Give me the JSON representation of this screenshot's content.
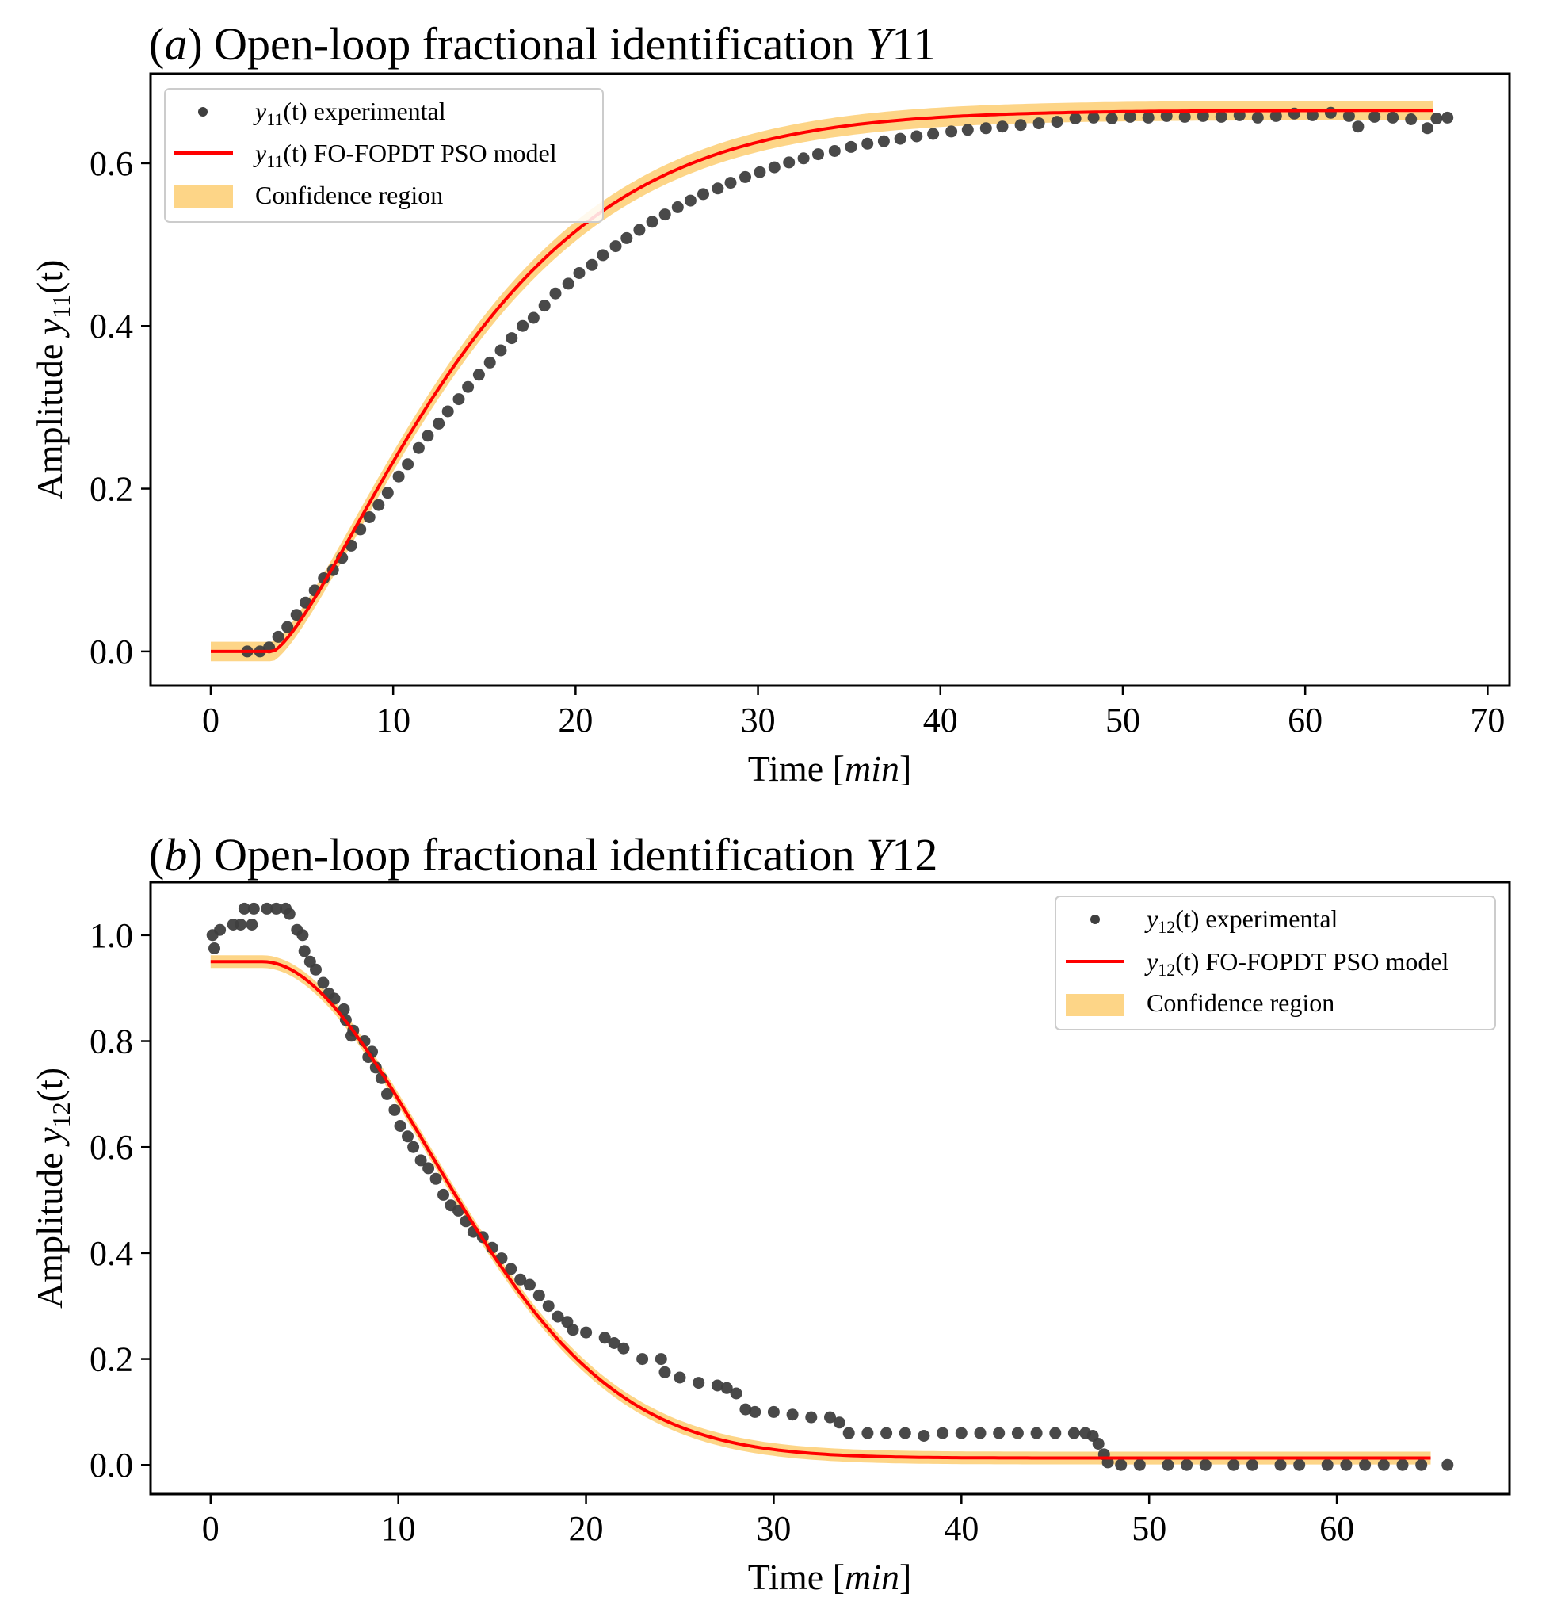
{
  "colors": {
    "band": "#fdd587",
    "model": "#ff0000",
    "exp": "#3f3f3f",
    "axis": "#000000"
  },
  "chart_data": [
    {
      "id": "a",
      "type": "scatter",
      "title_prefix": "(",
      "title_letter": "a",
      "title_main": ") Open-loop fractional identification ",
      "title_var": "Y",
      "title_num": "11",
      "xlabel": "Time [",
      "xlabel_var": "min",
      "xlabel_end": "]",
      "ylabel": "Amplitude ",
      "ylabel_var": "y",
      "ylabel_sub": "11",
      "ylabel_arg": "(t)",
      "xlim": [
        -3.3,
        71.2
      ],
      "ylim": [
        -0.042,
        0.71
      ],
      "xticks": [
        "0",
        "10",
        "20",
        "30",
        "40",
        "50",
        "60",
        "70"
      ],
      "yticks": [
        "0.0",
        "0.2",
        "0.4",
        "0.6"
      ],
      "legend_position": "upper-left",
      "legend": [
        {
          "var": "y",
          "sub": "11",
          "text": "(t) experimental"
        },
        {
          "var": "y",
          "sub": "11",
          "text": "(t) FO-FOPDT PSO model"
        },
        {
          "var": "",
          "sub": "",
          "text": "Confidence region"
        }
      ],
      "model": {
        "delay": 3.4,
        "K": 0.665,
        "tau": 12.3,
        "shape": 1.35,
        "y0": 0.0,
        "t_end": 67.0,
        "band": 0.012
      },
      "experimental": [
        [
          2,
          0.0
        ],
        [
          2.7,
          0.0
        ],
        [
          3.2,
          0.005
        ],
        [
          3.7,
          0.018
        ],
        [
          4.2,
          0.03
        ],
        [
          4.7,
          0.045
        ],
        [
          5.2,
          0.06
        ],
        [
          5.7,
          0.075
        ],
        [
          6.2,
          0.09
        ],
        [
          6.7,
          0.1
        ],
        [
          7.2,
          0.115
        ],
        [
          7.7,
          0.13
        ],
        [
          8.2,
          0.15
        ],
        [
          8.7,
          0.165
        ],
        [
          9.2,
          0.18
        ],
        [
          9.7,
          0.195
        ],
        [
          10.3,
          0.215
        ],
        [
          10.8,
          0.23
        ],
        [
          11.4,
          0.25
        ],
        [
          11.9,
          0.265
        ],
        [
          12.5,
          0.28
        ],
        [
          13.0,
          0.295
        ],
        [
          13.6,
          0.31
        ],
        [
          14.1,
          0.325
        ],
        [
          14.7,
          0.34
        ],
        [
          15.3,
          0.355
        ],
        [
          15.9,
          0.37
        ],
        [
          16.5,
          0.385
        ],
        [
          17.1,
          0.4
        ],
        [
          17.7,
          0.41
        ],
        [
          18.3,
          0.425
        ],
        [
          18.9,
          0.44
        ],
        [
          19.6,
          0.452
        ],
        [
          20.2,
          0.465
        ],
        [
          20.9,
          0.475
        ],
        [
          21.5,
          0.487
        ],
        [
          22.2,
          0.498
        ],
        [
          22.8,
          0.508
        ],
        [
          23.5,
          0.518
        ],
        [
          24.2,
          0.528
        ],
        [
          24.9,
          0.537
        ],
        [
          25.6,
          0.546
        ],
        [
          26.3,
          0.554
        ],
        [
          27.0,
          0.562
        ],
        [
          27.8,
          0.569
        ],
        [
          28.5,
          0.576
        ],
        [
          29.3,
          0.583
        ],
        [
          30.1,
          0.589
        ],
        [
          30.9,
          0.595
        ],
        [
          31.7,
          0.601
        ],
        [
          32.5,
          0.606
        ],
        [
          33.3,
          0.611
        ],
        [
          34.2,
          0.615
        ],
        [
          35.1,
          0.62
        ],
        [
          36.0,
          0.624
        ],
        [
          36.9,
          0.627
        ],
        [
          37.8,
          0.63
        ],
        [
          38.7,
          0.633
        ],
        [
          39.6,
          0.636
        ],
        [
          40.6,
          0.639
        ],
        [
          41.5,
          0.641
        ],
        [
          42.5,
          0.643
        ],
        [
          43.4,
          0.645
        ],
        [
          44.4,
          0.647
        ],
        [
          45.4,
          0.649
        ],
        [
          46.4,
          0.651
        ],
        [
          47.4,
          0.655
        ],
        [
          48.4,
          0.656
        ],
        [
          49.4,
          0.655
        ],
        [
          50.4,
          0.657
        ],
        [
          51.4,
          0.656
        ],
        [
          52.4,
          0.658
        ],
        [
          53.4,
          0.657
        ],
        [
          54.4,
          0.658
        ],
        [
          55.4,
          0.657
        ],
        [
          56.4,
          0.659
        ],
        [
          57.4,
          0.656
        ],
        [
          58.4,
          0.658
        ],
        [
          59.4,
          0.661
        ],
        [
          60.4,
          0.659
        ],
        [
          61.4,
          0.662
        ],
        [
          62.4,
          0.658
        ],
        [
          62.9,
          0.645
        ],
        [
          63.8,
          0.657
        ],
        [
          64.8,
          0.656
        ],
        [
          65.8,
          0.654
        ],
        [
          66.7,
          0.643
        ],
        [
          67.2,
          0.655
        ],
        [
          67.8,
          0.656
        ]
      ]
    },
    {
      "id": "b",
      "type": "scatter",
      "title_prefix": "(",
      "title_letter": "b",
      "title_main": ") Open-loop fractional identification ",
      "title_var": "Y",
      "title_num": "12",
      "xlabel": "Time [",
      "xlabel_var": "min",
      "xlabel_end": "]",
      "ylabel": "Amplitude ",
      "ylabel_var": "y",
      "ylabel_sub": "12",
      "ylabel_arg": "(t)",
      "xlim": [
        -3.2,
        69.2
      ],
      "ylim": [
        -0.055,
        1.1
      ],
      "xticks": [
        "0",
        "10",
        "20",
        "30",
        "40",
        "50",
        "60"
      ],
      "yticks": [
        "0.0",
        "0.2",
        "0.4",
        "0.6",
        "0.8",
        "1.0"
      ],
      "legend_position": "upper-right",
      "legend": [
        {
          "var": "y",
          "sub": "12",
          "text": "(t) experimental"
        },
        {
          "var": "y",
          "sub": "12",
          "text": "(t) FO-FOPDT PSO model"
        },
        {
          "var": "",
          "sub": "",
          "text": "Confidence region"
        }
      ],
      "model": {
        "delay": 2.8,
        "K": -0.937,
        "tau": 13.0,
        "shape": 1.9,
        "y0": 0.95,
        "t_end": 65.0,
        "band": 0.012
      },
      "experimental": [
        [
          0.1,
          1.0
        ],
        [
          0.2,
          0.975
        ],
        [
          0.5,
          1.01
        ],
        [
          1.2,
          1.02
        ],
        [
          1.6,
          1.02
        ],
        [
          2.2,
          1.02
        ],
        [
          1.8,
          1.05
        ],
        [
          2.3,
          1.05
        ],
        [
          3.0,
          1.05
        ],
        [
          3.5,
          1.05
        ],
        [
          4.0,
          1.05
        ],
        [
          4.2,
          1.04
        ],
        [
          4.6,
          1.01
        ],
        [
          4.9,
          1.0
        ],
        [
          5.0,
          0.97
        ],
        [
          5.3,
          0.95
        ],
        [
          5.6,
          0.935
        ],
        [
          6.0,
          0.91
        ],
        [
          6.3,
          0.89
        ],
        [
          6.6,
          0.88
        ],
        [
          7.1,
          0.86
        ],
        [
          7.2,
          0.84
        ],
        [
          7.6,
          0.82
        ],
        [
          7.5,
          0.81
        ],
        [
          8.2,
          0.8
        ],
        [
          8.6,
          0.78
        ],
        [
          8.8,
          0.75
        ],
        [
          8.4,
          0.77
        ],
        [
          9.1,
          0.73
        ],
        [
          9.4,
          0.7
        ],
        [
          9.8,
          0.67
        ],
        [
          10.1,
          0.64
        ],
        [
          10.5,
          0.62
        ],
        [
          10.8,
          0.6
        ],
        [
          11.2,
          0.575
        ],
        [
          11.6,
          0.56
        ],
        [
          12.0,
          0.54
        ],
        [
          12.4,
          0.51
        ],
        [
          12.8,
          0.49
        ],
        [
          13.2,
          0.48
        ],
        [
          13.6,
          0.46
        ],
        [
          14.0,
          0.44
        ],
        [
          14.5,
          0.43
        ],
        [
          15.0,
          0.41
        ],
        [
          15.5,
          0.39
        ],
        [
          16.0,
          0.37
        ],
        [
          16.5,
          0.35
        ],
        [
          17.0,
          0.34
        ],
        [
          17.5,
          0.32
        ],
        [
          18.0,
          0.3
        ],
        [
          18.5,
          0.28
        ],
        [
          19.0,
          0.27
        ],
        [
          19.3,
          0.255
        ],
        [
          20.0,
          0.25
        ],
        [
          21.0,
          0.24
        ],
        [
          21.5,
          0.23
        ],
        [
          22.0,
          0.22
        ],
        [
          23.0,
          0.2
        ],
        [
          24.0,
          0.2
        ],
        [
          24.2,
          0.175
        ],
        [
          25.0,
          0.165
        ],
        [
          26.0,
          0.155
        ],
        [
          27.0,
          0.15
        ],
        [
          27.5,
          0.145
        ],
        [
          28.0,
          0.135
        ],
        [
          28.5,
          0.105
        ],
        [
          29.0,
          0.1
        ],
        [
          30.0,
          0.1
        ],
        [
          31.0,
          0.095
        ],
        [
          32.0,
          0.09
        ],
        [
          33.0,
          0.09
        ],
        [
          33.5,
          0.08
        ],
        [
          34.0,
          0.06
        ],
        [
          35.0,
          0.06
        ],
        [
          36.0,
          0.06
        ],
        [
          37.0,
          0.06
        ],
        [
          38.0,
          0.055
        ],
        [
          39.0,
          0.06
        ],
        [
          40.0,
          0.06
        ],
        [
          41.0,
          0.06
        ],
        [
          42.0,
          0.06
        ],
        [
          43.0,
          0.06
        ],
        [
          44.0,
          0.06
        ],
        [
          45.0,
          0.06
        ],
        [
          46.0,
          0.06
        ],
        [
          46.6,
          0.06
        ],
        [
          47.0,
          0.055
        ],
        [
          47.3,
          0.04
        ],
        [
          47.6,
          0.02
        ],
        [
          47.8,
          0.005
        ],
        [
          48.5,
          0.0
        ],
        [
          49.5,
          0.0
        ],
        [
          51.0,
          0.0
        ],
        [
          52.0,
          0.0
        ],
        [
          53.0,
          0.0
        ],
        [
          54.5,
          0.0
        ],
        [
          55.5,
          0.0
        ],
        [
          57.0,
          0.0
        ],
        [
          58.0,
          0.0
        ],
        [
          59.5,
          0.0
        ],
        [
          60.5,
          0.0
        ],
        [
          61.5,
          0.0
        ],
        [
          62.5,
          0.0
        ],
        [
          63.5,
          0.0
        ],
        [
          64.5,
          0.0
        ],
        [
          65.9,
          0.0
        ]
      ]
    }
  ]
}
